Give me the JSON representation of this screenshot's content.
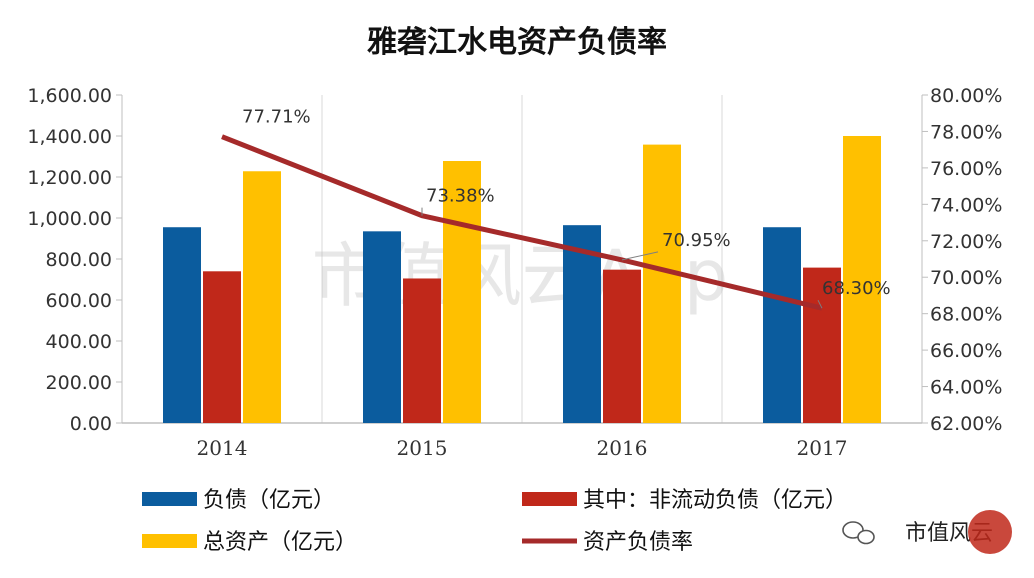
{
  "chart_data": {
    "type": "bar",
    "title": "雅砻江水电资产负债率",
    "categories": [
      "2014",
      "2015",
      "2016",
      "2017"
    ],
    "series": [
      {
        "name": "负债（亿元）",
        "values": [
          955,
          935,
          965,
          955
        ],
        "color": "#0b5c9e",
        "axis": "left"
      },
      {
        "name": "其中：非流动负债（亿元）",
        "values": [
          740,
          705,
          748,
          758
        ],
        "color": "#c0281a",
        "axis": "left"
      },
      {
        "name": "总资产（亿元）",
        "values": [
          1228,
          1278,
          1358,
          1400
        ],
        "color": "#ffc000",
        "axis": "left"
      },
      {
        "name": "资产负债率",
        "type": "line",
        "values": [
          77.71,
          73.38,
          70.95,
          68.3
        ],
        "value_labels": [
          "77.71%",
          "73.38%",
          "70.95%",
          "68.30%"
        ],
        "color": "#a52a2a",
        "axis": "right"
      }
    ],
    "ylim": [
      0,
      1600
    ],
    "y_ticks": [
      "0.00",
      "200.00",
      "400.00",
      "600.00",
      "800.00",
      "1,000.00",
      "1,200.00",
      "1,400.00",
      "1,600.00"
    ],
    "y2lim": [
      62,
      80
    ],
    "y2_ticks": [
      "62.00%",
      "64.00%",
      "66.00%",
      "68.00%",
      "70.00%",
      "72.00%",
      "74.00%",
      "76.00%",
      "78.00%",
      "80.00%"
    ],
    "grid": "vertical",
    "legend": "bottom"
  },
  "watermark": "市值风云App",
  "brand": {
    "name": "市值风云",
    "icon": "wechat-icon"
  }
}
